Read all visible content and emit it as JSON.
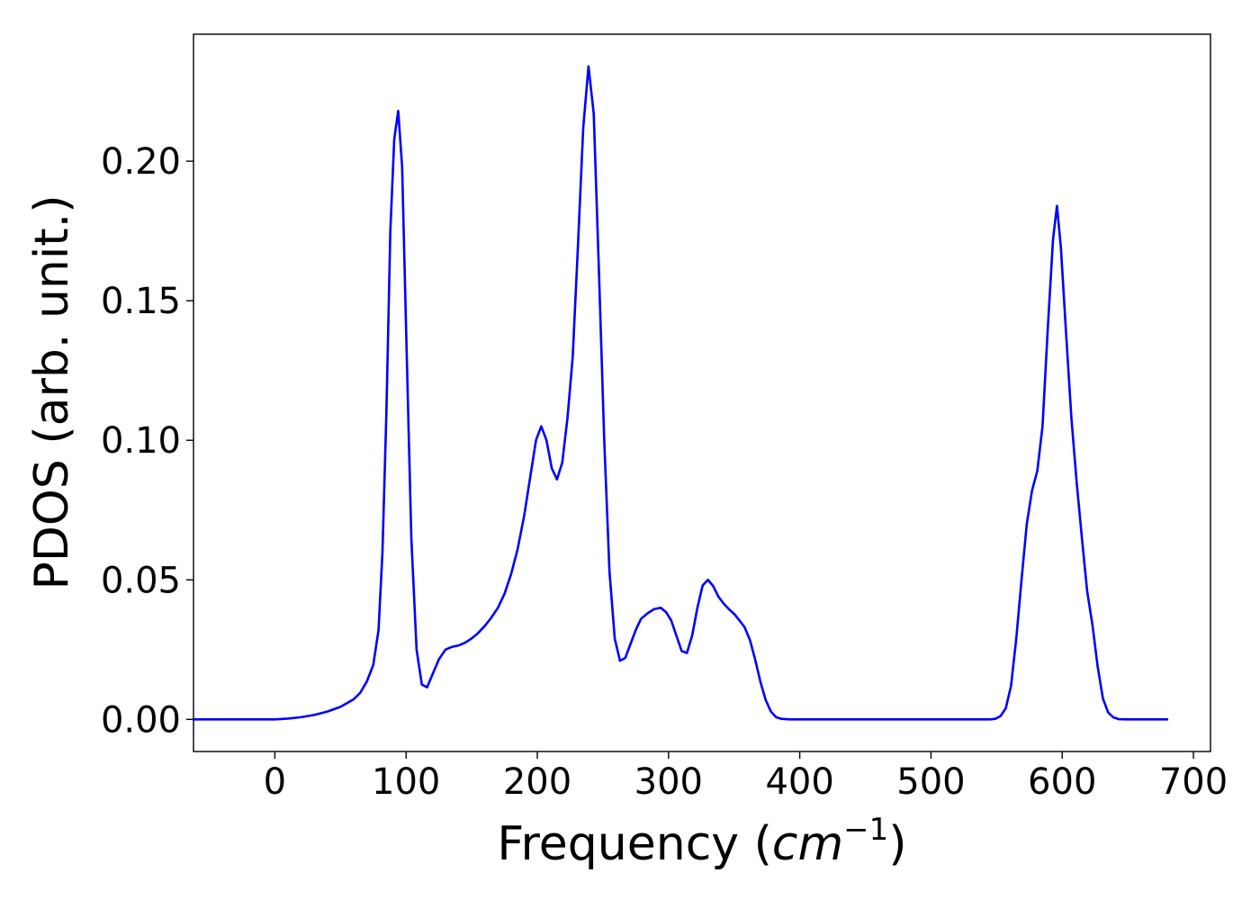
{
  "chart_data": {
    "type": "line",
    "title": "",
    "xlabel": "Frequency",
    "xlabel_unit": "cm",
    "xlabel_unit_exponent": "−1",
    "ylabel": "PDOS (arb. unit.)",
    "xlim": [
      -62,
      713
    ],
    "ylim": [
      -0.0115,
      0.2455
    ],
    "xticks": [
      0,
      100,
      200,
      300,
      400,
      500,
      600,
      700
    ],
    "xtick_labels": [
      "0",
      "100",
      "200",
      "300",
      "400",
      "500",
      "600",
      "700"
    ],
    "yticks": [
      0.0,
      0.05,
      0.1,
      0.15,
      0.2
    ],
    "ytick_labels": [
      "0.00",
      "0.05",
      "0.10",
      "0.15",
      "0.20"
    ],
    "grid": false,
    "legend": false,
    "series": [
      {
        "color": "#0000ff",
        "points": [
          [
            -62,
            0.0
          ],
          [
            0,
            0.0
          ],
          [
            10,
            0.0003
          ],
          [
            20,
            0.0008
          ],
          [
            30,
            0.0016
          ],
          [
            40,
            0.0028
          ],
          [
            50,
            0.0045
          ],
          [
            60,
            0.0072
          ],
          [
            65,
            0.0095
          ],
          [
            70,
            0.0135
          ],
          [
            75,
            0.0195
          ],
          [
            79,
            0.032
          ],
          [
            82,
            0.06
          ],
          [
            85,
            0.11
          ],
          [
            88,
            0.175
          ],
          [
            91,
            0.208
          ],
          [
            94,
            0.218
          ],
          [
            97,
            0.198
          ],
          [
            100,
            0.14
          ],
          [
            104,
            0.065
          ],
          [
            108,
            0.025
          ],
          [
            112,
            0.0125
          ],
          [
            116,
            0.0115
          ],
          [
            120,
            0.016
          ],
          [
            125,
            0.0215
          ],
          [
            130,
            0.025
          ],
          [
            135,
            0.026
          ],
          [
            140,
            0.0265
          ],
          [
            145,
            0.0275
          ],
          [
            150,
            0.029
          ],
          [
            155,
            0.031
          ],
          [
            160,
            0.0335
          ],
          [
            165,
            0.0365
          ],
          [
            170,
            0.04
          ],
          [
            175,
            0.045
          ],
          [
            180,
            0.052
          ],
          [
            185,
            0.061
          ],
          [
            190,
            0.073
          ],
          [
            195,
            0.088
          ],
          [
            199,
            0.1
          ],
          [
            203,
            0.105
          ],
          [
            207,
            0.1
          ],
          [
            211,
            0.09
          ],
          [
            215,
            0.086
          ],
          [
            219,
            0.092
          ],
          [
            223,
            0.108
          ],
          [
            227,
            0.13
          ],
          [
            231,
            0.17
          ],
          [
            235,
            0.212
          ],
          [
            239,
            0.234
          ],
          [
            243,
            0.217
          ],
          [
            247,
            0.16
          ],
          [
            251,
            0.1
          ],
          [
            255,
            0.053
          ],
          [
            259,
            0.029
          ],
          [
            263,
            0.021
          ],
          [
            267,
            0.022
          ],
          [
            271,
            0.027
          ],
          [
            275,
            0.032
          ],
          [
            279,
            0.036
          ],
          [
            284,
            0.038
          ],
          [
            289,
            0.0395
          ],
          [
            294,
            0.04
          ],
          [
            298,
            0.0385
          ],
          [
            302,
            0.0355
          ],
          [
            306,
            0.03
          ],
          [
            310,
            0.0245
          ],
          [
            314,
            0.0238
          ],
          [
            318,
            0.03
          ],
          [
            322,
            0.04
          ],
          [
            326,
            0.048
          ],
          [
            330,
            0.05
          ],
          [
            334,
            0.0478
          ],
          [
            338,
            0.044
          ],
          [
            342,
            0.0415
          ],
          [
            346,
            0.0395
          ],
          [
            350,
            0.0378
          ],
          [
            354,
            0.0355
          ],
          [
            358,
            0.033
          ],
          [
            362,
            0.0285
          ],
          [
            366,
            0.0215
          ],
          [
            370,
            0.0135
          ],
          [
            374,
            0.007
          ],
          [
            378,
            0.0028
          ],
          [
            382,
            0.0008
          ],
          [
            386,
            0.0002
          ],
          [
            392,
            0.0
          ],
          [
            450,
            0.0
          ],
          [
            500,
            0.0
          ],
          [
            545,
            0.0
          ],
          [
            549,
            0.0002
          ],
          [
            553,
            0.0012
          ],
          [
            557,
            0.004
          ],
          [
            561,
            0.012
          ],
          [
            565,
            0.029
          ],
          [
            569,
            0.05
          ],
          [
            573,
            0.07
          ],
          [
            577,
            0.082
          ],
          [
            581,
            0.089
          ],
          [
            585,
            0.105
          ],
          [
            589,
            0.14
          ],
          [
            593,
            0.172
          ],
          [
            596,
            0.184
          ],
          [
            599,
            0.169
          ],
          [
            603,
            0.138
          ],
          [
            607,
            0.108
          ],
          [
            611,
            0.085
          ],
          [
            615,
            0.065
          ],
          [
            619,
            0.046
          ],
          [
            623,
            0.034
          ],
          [
            627,
            0.019
          ],
          [
            631,
            0.0075
          ],
          [
            635,
            0.0025
          ],
          [
            639,
            0.0007
          ],
          [
            643,
            0.0001
          ],
          [
            650,
            0.0
          ],
          [
            680,
            0.0
          ]
        ]
      }
    ]
  }
}
